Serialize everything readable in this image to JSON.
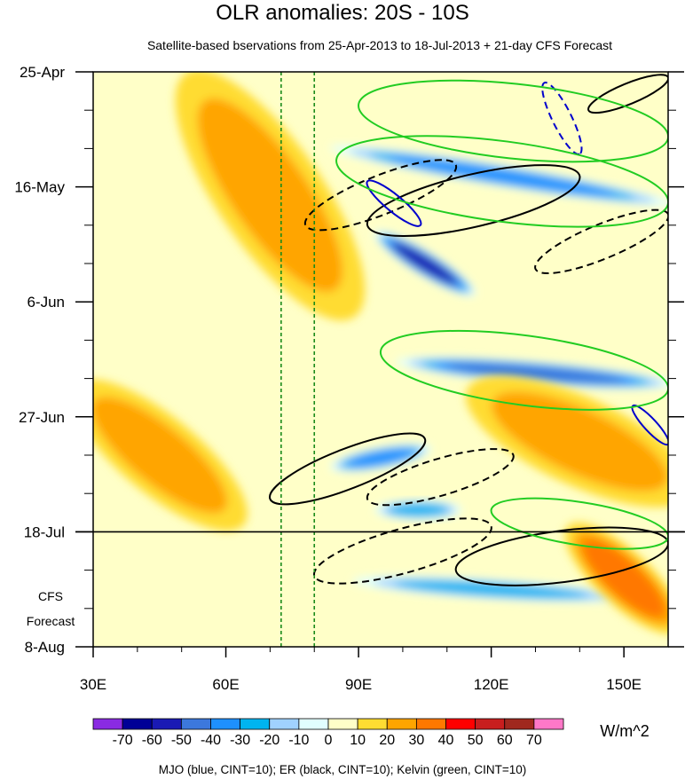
{
  "chart_data": {
    "type": "heatmap",
    "title": "OLR anomalies: 20S - 10S",
    "subtitle": "Satellite-based bservations from 25-Apr-2013 to 18-Jul-2013 + 21-day CFS Forecast",
    "x_axis": {
      "range": [
        30,
        160
      ],
      "ticks": [
        30,
        60,
        90,
        120,
        150
      ],
      "tick_labels": [
        "30E",
        "60E",
        "90E",
        "120E",
        "150E"
      ]
    },
    "y_axis": {
      "tick_labels": [
        "25-Apr",
        "16-May",
        "6-Jun",
        "27-Jun",
        "18-Jul",
        "8-Aug"
      ],
      "tick_days": [
        0,
        21,
        42,
        63,
        84,
        105
      ],
      "range_days": [
        0,
        105
      ],
      "forecast_start_day": 84
    },
    "forecast_label_lines": [
      "CFS",
      "Forecast"
    ],
    "reference_lines_lon": [
      72.5,
      80
    ],
    "colorbar": {
      "levels": [
        "-70",
        "-60",
        "-50",
        "-40",
        "-30",
        "-20",
        "-10",
        "0",
        "10",
        "20",
        "30",
        "40",
        "50",
        "60",
        "70"
      ],
      "colors": [
        "#8a2be2",
        "#000096",
        "#1a1ab4",
        "#3c78dc",
        "#1e90ff",
        "#00b4f0",
        "#a0d2ff",
        "#e1ffff",
        "#ffffc8",
        "#ffdc32",
        "#ffa500",
        "#ff7800",
        "#ff0000",
        "#c81e1e",
        "#a0281e",
        "#ff78c8"
      ],
      "units": "W/m^2"
    },
    "anomaly_features": [
      {
        "sign": "neg",
        "lon0": 85,
        "day0": 14,
        "lon1": 160,
        "day1": 24,
        "value": -40
      },
      {
        "sign": "neg",
        "lon0": 95,
        "day0": 30,
        "lon1": 115,
        "day1": 40,
        "value": -60
      },
      {
        "sign": "neg",
        "lon0": 100,
        "day0": 53,
        "lon1": 160,
        "day1": 57,
        "value": -50
      },
      {
        "sign": "neg",
        "lon0": 85,
        "day0": 72,
        "lon1": 105,
        "day1": 69,
        "value": -40
      },
      {
        "sign": "neg",
        "lon0": 90,
        "day0": 93,
        "lon1": 150,
        "day1": 96,
        "value": -30
      },
      {
        "sign": "neg",
        "lon0": 95,
        "day0": 80,
        "lon1": 112,
        "day1": 80,
        "value": -30
      },
      {
        "sign": "pos",
        "lon0": 55,
        "day0": 5,
        "lon1": 85,
        "day1": 40,
        "value": 20
      },
      {
        "sign": "pos",
        "lon0": 30,
        "day0": 60,
        "lon1": 60,
        "day1": 80,
        "value": 20
      },
      {
        "sign": "pos",
        "lon0": 120,
        "day0": 60,
        "lon1": 160,
        "day1": 75,
        "value": 20
      },
      {
        "sign": "pos",
        "lon0": 140,
        "day0": 85,
        "lon1": 160,
        "day1": 100,
        "value": 30
      }
    ],
    "contour_sets": {
      "legend": "MJO (blue, CINT=10); ER (black, CINT=10); Kelvin (green, CINT=10)",
      "MJO": {
        "color": "#0000cc",
        "cint": 10
      },
      "ER": {
        "color": "#000000",
        "cint": 10
      },
      "Kelvin": {
        "color": "#22cc22",
        "cint": 10
      }
    }
  }
}
